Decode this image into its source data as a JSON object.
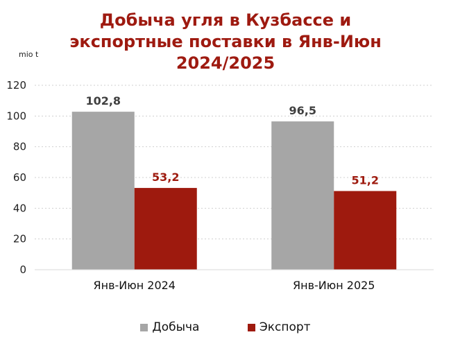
{
  "chart_data": {
    "type": "bar",
    "title_lines": [
      "Добыча угля в Кузбассе и",
      "экспортные поставки в Янв-Июн",
      "2024/2025"
    ],
    "unit_label": "mio t",
    "categories": [
      "Янв-Июн 2024",
      "Янв-Июн 2025"
    ],
    "series": [
      {
        "name": "Добыча",
        "values": [
          102.8,
          96.5
        ],
        "labels": [
          "102,8",
          "96,5"
        ],
        "color": "#a6a6a6",
        "label_color": "#404040"
      },
      {
        "name": "Экспорт",
        "values": [
          53.2,
          51.2
        ],
        "labels": [
          "53,2",
          "51,2"
        ],
        "color": "#9e1a0e",
        "label_color": "#9e1a0e"
      }
    ],
    "ylim": [
      0,
      120
    ],
    "yticks": [
      "0",
      "20",
      "40",
      "60",
      "80",
      "100",
      "120"
    ],
    "grid": true,
    "legend_position": "bottom"
  }
}
